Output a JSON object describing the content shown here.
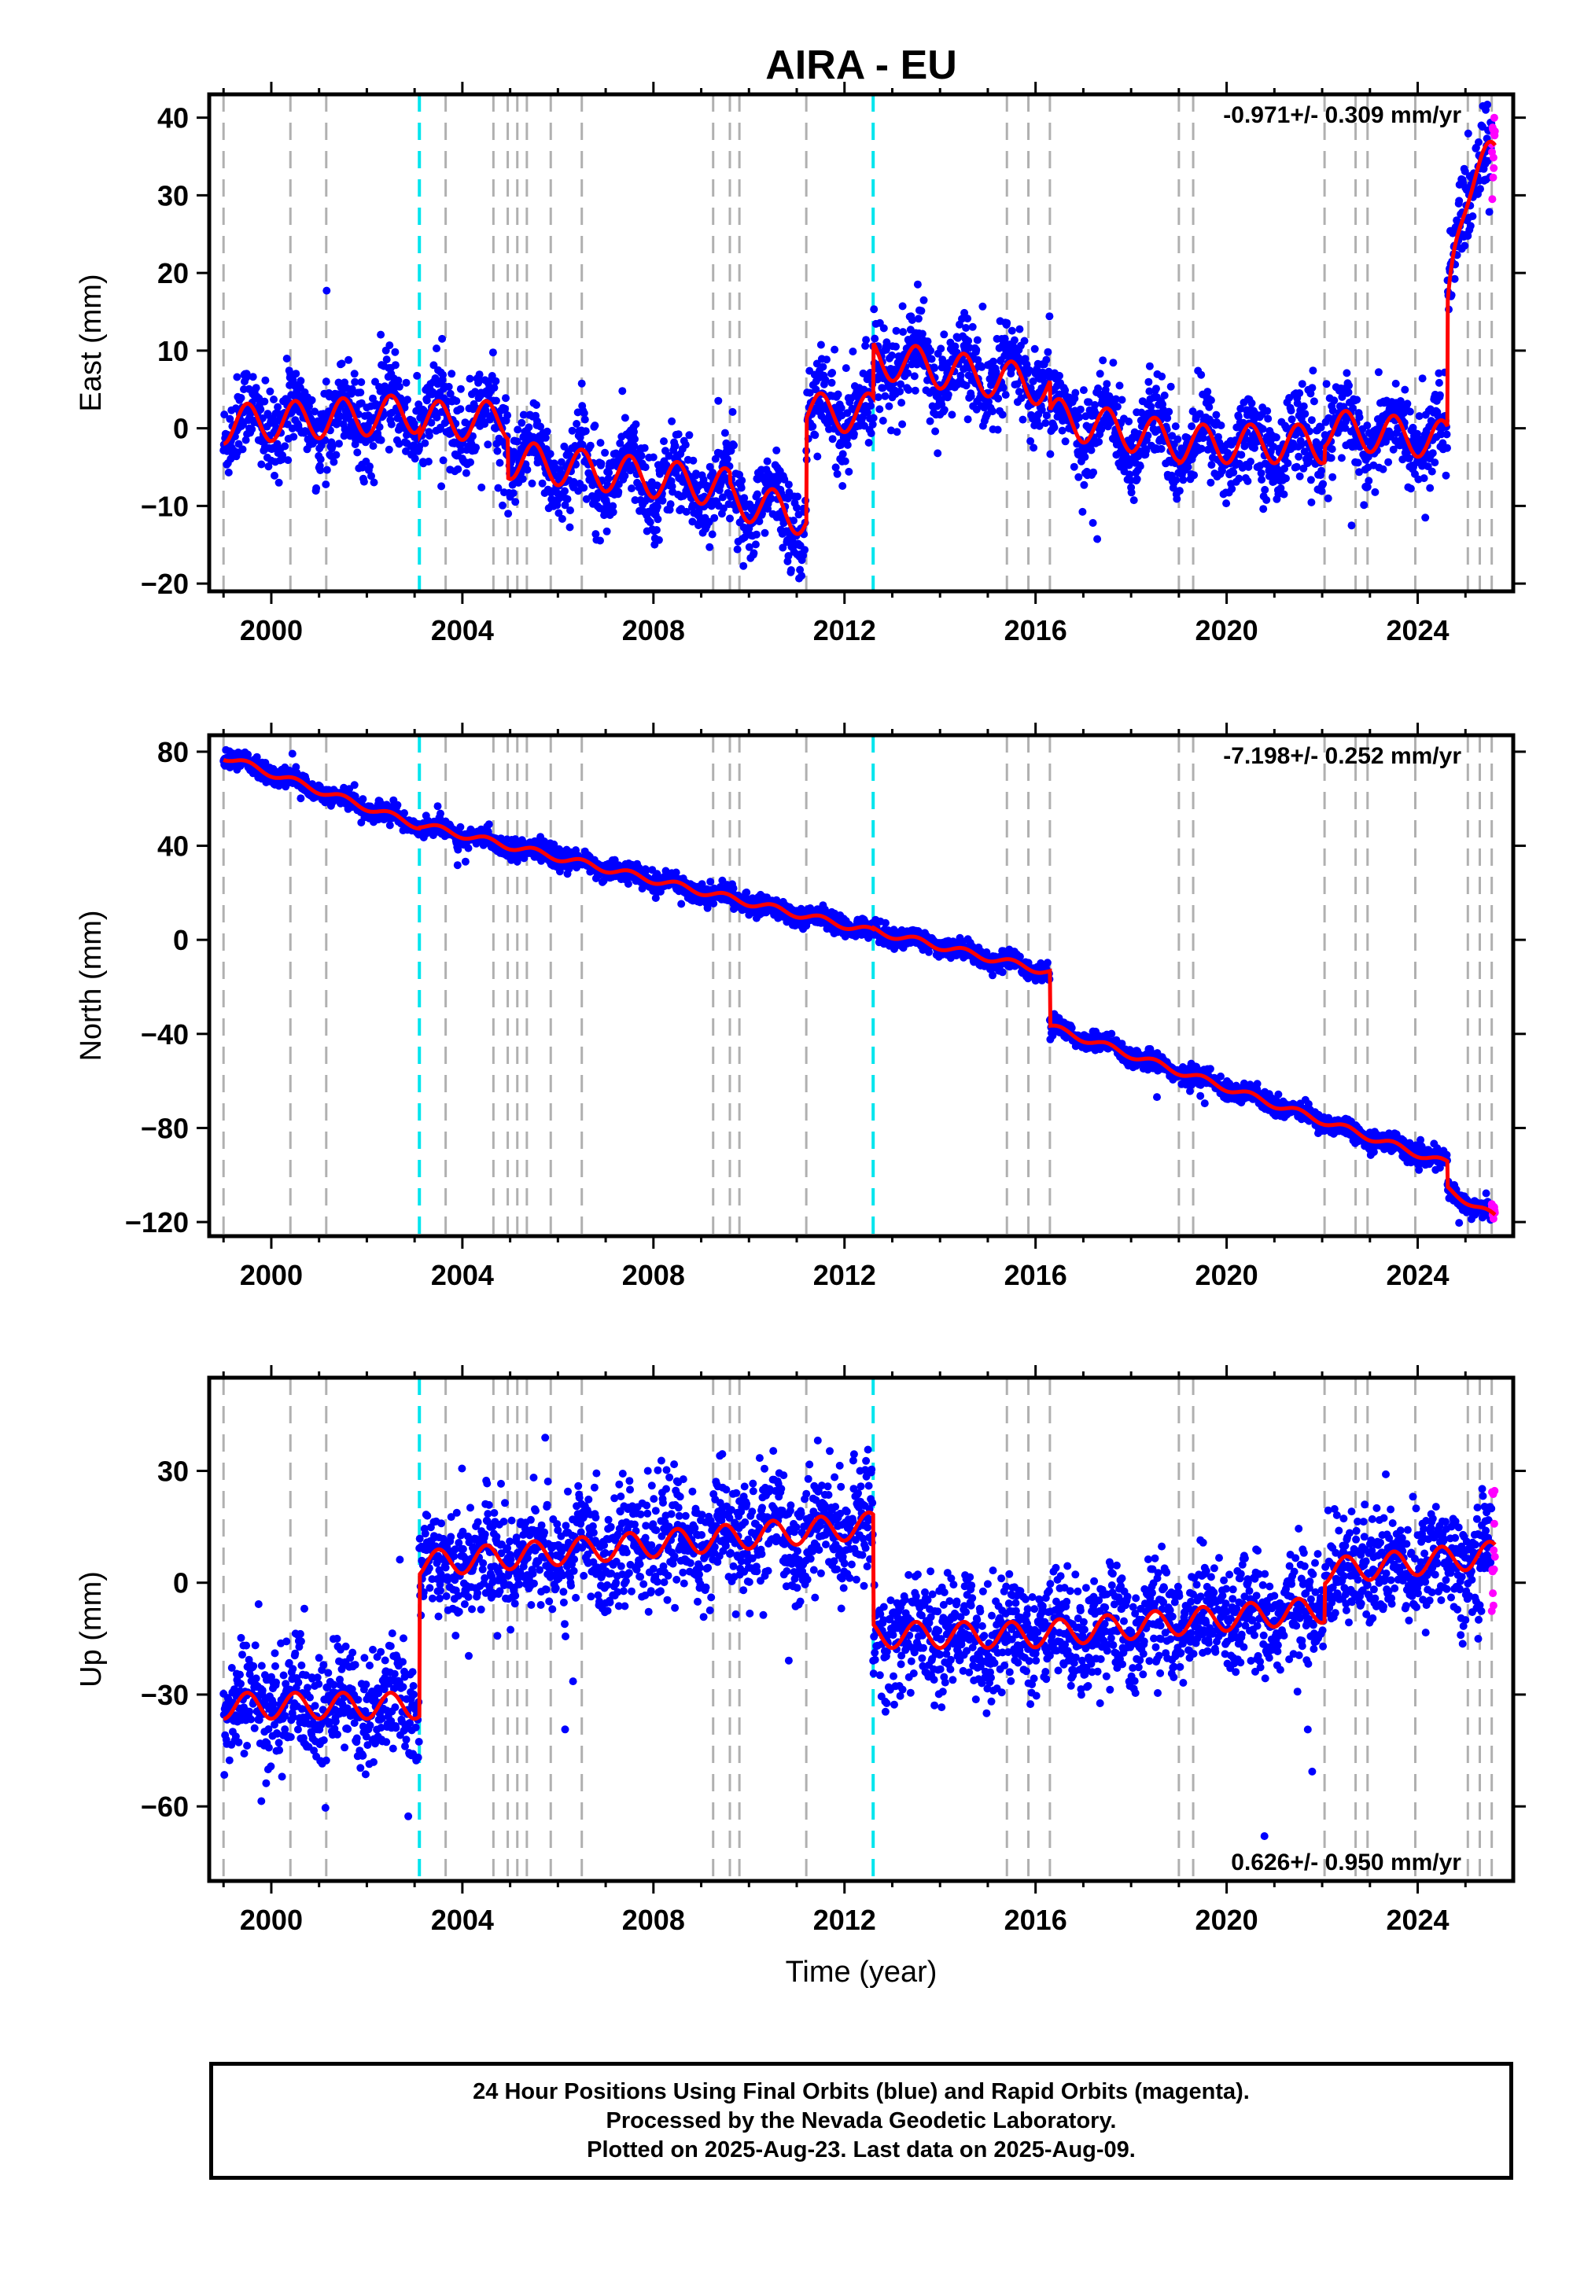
{
  "chart_data": {
    "type": "scatter",
    "title": "AIRA - EU",
    "x_axis": {
      "label": "Time (year)",
      "range": [
        1998.7,
        2026.0
      ],
      "ticks": [
        2000,
        2004,
        2008,
        2012,
        2016,
        2020,
        2024
      ],
      "tick_labels": [
        "2000",
        "2004",
        "2008",
        "2012",
        "2016",
        "2020",
        "2024"
      ]
    },
    "equipment_changes_gray": [
      1999.0,
      2000.4,
      2001.15,
      2003.65,
      2004.65,
      2004.95,
      2005.15,
      2005.35,
      2005.85,
      2006.5,
      2009.25,
      2009.6,
      2009.8,
      2011.2,
      2015.4,
      2015.85,
      2016.3,
      2019.0,
      2019.3,
      2022.05,
      2022.7,
      2022.95,
      2023.95,
      2025.05,
      2025.3,
      2025.55
    ],
    "earthquake_events_cyan": [
      2003.1,
      2012.6
    ],
    "panels": [
      {
        "component": "East",
        "ylabel": "East (mm)",
        "ylim": [
          -21,
          43
        ],
        "yticks": [
          -20,
          -10,
          0,
          10,
          20,
          30,
          40
        ],
        "ytick_labels": [
          "−20",
          "−10",
          "0",
          "10",
          "20",
          "30",
          "40"
        ],
        "rate_text": "-0.971+/- 0.309 mm/yr",
        "rate_position": "top-right",
        "model": {
          "trend_mm_per_yr": -0.971,
          "annual_amplitude_mm": 2.5,
          "segments": [
            {
              "from": 1999.0,
              "to": 2003.1,
              "offset": 0.5,
              "slope": 0.35
            },
            {
              "from": 2003.1,
              "to": 2004.95,
              "offset": 1.0,
              "slope": 0.0
            },
            {
              "from": 2004.95,
              "to": 2009.6,
              "offset": -4.0,
              "slope": -0.8
            },
            {
              "from": 2009.6,
              "to": 2011.2,
              "offset": -9.0,
              "slope": -1.5
            },
            {
              "from": 2011.2,
              "to": 2012.6,
              "offset": 2.0,
              "slope": 0.0
            },
            {
              "from": 2012.6,
              "to": 2016.3,
              "offset": 9.0,
              "slope": -1.0
            },
            {
              "from": 2016.3,
              "to": 2019.0,
              "offset": 1.5,
              "slope": -1.2
            },
            {
              "from": 2019.0,
              "to": 2022.05,
              "offset": -2.0,
              "slope": 0.0
            },
            {
              "from": 2022.05,
              "to": 2024.62,
              "offset": 0.0,
              "slope": -0.6
            },
            {
              "from": 2024.62,
              "to": 2025.62,
              "offset": 14.0,
              "slope": 0.0,
              "postseismic_mm": 21.0,
              "tau_yr": 0.25
            }
          ],
          "scatter_mm": 2.7
        }
      },
      {
        "component": "North",
        "ylabel": "North (mm)",
        "ylim": [
          -126,
          87
        ],
        "yticks": [
          -120,
          -80,
          -40,
          0,
          40,
          80
        ],
        "ytick_labels": [
          "−120",
          "−80",
          "−40",
          "0",
          "40",
          "80"
        ],
        "rate_text": "-7.198+/- 0.252 mm/yr",
        "rate_position": "top-right",
        "model": {
          "trend_mm_per_yr": -7.198,
          "annual_amplitude_mm": 1.5,
          "segments": [
            {
              "from": 1999.0,
              "to": 2003.1,
              "offset": 78.0,
              "slope": -7.2
            },
            {
              "from": 2003.1,
              "to": 2012.6,
              "offset": 49.0,
              "slope": -4.8
            },
            {
              "from": 2012.6,
              "to": 2016.3,
              "offset": 4.0,
              "slope": -4.8
            },
            {
              "from": 2016.3,
              "to": 2024.62,
              "offset": -37.0,
              "slope": -7.0
            },
            {
              "from": 2024.62,
              "to": 2025.62,
              "offset": -106.0,
              "slope": -12.0
            }
          ],
          "scatter_mm": 2.0
        }
      },
      {
        "component": "Up",
        "ylabel": "Up (mm)",
        "ylim": [
          -80,
          55
        ],
        "yticks": [
          -60,
          -30,
          0,
          30
        ],
        "ytick_labels": [
          "−60",
          "−30",
          "0",
          "30"
        ],
        "rate_text": "0.626+/- 0.950 mm/yr",
        "rate_position": "bottom-right",
        "model": {
          "trend_mm_per_yr": 0.626,
          "annual_amplitude_mm": 3.5,
          "segments": [
            {
              "from": 1999.0,
              "to": 2003.1,
              "offset": -33.0,
              "slope": 0.0
            },
            {
              "from": 2003.1,
              "to": 2012.6,
              "offset": 5.0,
              "slope": 1.1
            },
            {
              "from": 2012.6,
              "to": 2015.85,
              "offset": -14.0,
              "slope": 0.0
            },
            {
              "from": 2015.85,
              "to": 2022.05,
              "offset": -14.0,
              "slope": 1.1
            },
            {
              "from": 2022.05,
              "to": 2025.62,
              "offset": 3.0,
              "slope": 1.3
            }
          ],
          "scatter_mm": 7.5
        }
      }
    ],
    "series": [
      {
        "name": "Final Orbits",
        "color": "#0000ff"
      },
      {
        "name": "Rapid Orbits",
        "color": "#ff00ff"
      },
      {
        "name": "Model fit",
        "color": "#ff0000"
      }
    ],
    "rapid_orbit_range": [
      2025.55,
      2025.62
    ]
  },
  "footer": {
    "line1": "24 Hour Positions Using Final Orbits (blue) and Rapid Orbits (magenta).",
    "line2": "Processed by the Nevada Geodetic Laboratory.",
    "line3": "Plotted on 2025-Aug-23. Last data on 2025-Aug-09."
  },
  "colors": {
    "final_points": "#0000ff",
    "rapid_points": "#ff00ff",
    "fit_line": "#ff0000",
    "equipment_line": "#b0b0b0",
    "earthquake_line": "#00e5ee"
  }
}
